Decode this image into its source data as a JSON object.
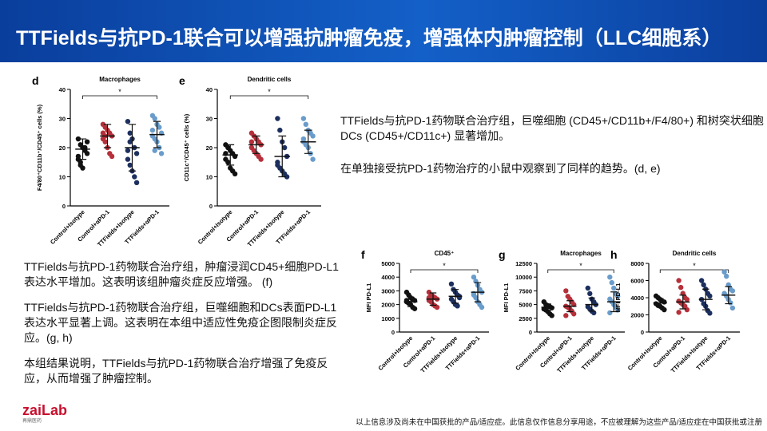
{
  "header": {
    "title": "TTFields与抗PD-1联合可以增强抗肿瘤免疫，增强体内肿瘤控制（LLC细胞系）"
  },
  "right_text": [
    "TTFields与抗PD-1药物联合治疗组，巨噬细胞 (CD45+/CD11b+/F4/80+) 和树突状细胞DCs (CD45+/CD11c+) 显著增加。",
    "在单独接受抗PD-1药物治疗的小鼠中观察到了同样的趋势。(d, e)"
  ],
  "left_text": [
    "TTFields与抗PD-1药物联合治疗组，肿瘤浸润CD45+细胞PD-L1表达水平增加。这表明该组肿瘤炎症反应增强。 (f)",
    "TTFields与抗PD-1药物联合治疗组，巨噬细胞和DCs表面PD-L1表达水平显著上调。这表明在本组中适应性免疫企图限制炎症反应。(g, h)",
    "本组结果说明，TTFields与抗PD-1药物联合治疗增强了免疫反应，从而增强了肿瘤控制。"
  ],
  "logo": {
    "name": "zaiLab",
    "sub": "再鼎医药"
  },
  "footer": "以上信息涉及尚未在中国获批的产品/适应症。此信息仅作信息分享用途，不应被理解为这些产品/适应症在中国获批或注册",
  "chart_data": [
    {
      "type": "strip",
      "label": "d",
      "title": "Macrophages",
      "y_label": "F4/80⁺CD11b⁺/CD45⁺ cells (%)",
      "annotation": "*",
      "categories": [
        "Control+Isotype",
        "Control+αPD-1",
        "TTFields+Isotype",
        "TTFields+αPD-1"
      ],
      "ylim": [
        0,
        40
      ],
      "yticks": [
        0,
        10,
        20,
        30,
        40
      ],
      "groups": [
        {
          "color": "#111111",
          "points": [
            23,
            21,
            20,
            19,
            18,
            16,
            15,
            13,
            20,
            22,
            17,
            14
          ],
          "mean": 19.5,
          "sd": 3.5
        },
        {
          "color": "#b5303a",
          "points": [
            28,
            27,
            26,
            25,
            24,
            23,
            22,
            20,
            18,
            17,
            25,
            24
          ],
          "mean": 24,
          "sd": 4
        },
        {
          "color": "#1c2f5e",
          "points": [
            29,
            25,
            23,
            20,
            18,
            16,
            14,
            12,
            10,
            8,
            19,
            22
          ],
          "mean": 20,
          "sd": 8
        },
        {
          "color": "#6a9ccb",
          "points": [
            31,
            30,
            28,
            27,
            25,
            24,
            23,
            22,
            20,
            18,
            26,
            19
          ],
          "mean": 24.5,
          "sd": 4.5
        }
      ]
    },
    {
      "type": "strip",
      "label": "e",
      "title": "Dendritic cells",
      "y_label": "CD11c⁺/CD45⁺ cells (%)",
      "annotation": "*",
      "categories": [
        "Control+Isotype",
        "Control+αPD-1",
        "TTFields+Isotype",
        "TTFields+αPD-1"
      ],
      "ylim": [
        0,
        40
      ],
      "yticks": [
        0,
        10,
        20,
        30,
        40
      ],
      "groups": [
        {
          "color": "#111111",
          "points": [
            21,
            20,
            19,
            18,
            17,
            16,
            15,
            13,
            12,
            11,
            18
          ],
          "mean": 17.5,
          "sd": 3.5
        },
        {
          "color": "#b5303a",
          "points": [
            25,
            24,
            23,
            22,
            21,
            20,
            19,
            18,
            17,
            16,
            22
          ],
          "mean": 21,
          "sd": 3
        },
        {
          "color": "#1c2f5e",
          "points": [
            30,
            26,
            22,
            20,
            17,
            15,
            13,
            12,
            11,
            10,
            14
          ],
          "mean": 17,
          "sd": 7
        },
        {
          "color": "#6a9ccb",
          "points": [
            30,
            28,
            26,
            25,
            24,
            22,
            21,
            20,
            18,
            16,
            23
          ],
          "mean": 22,
          "sd": 4
        }
      ]
    },
    {
      "type": "strip",
      "label": "f",
      "title": "CD45⁺",
      "y_label": "MFI PD-L1",
      "annotation": "*",
      "categories": [
        "Control+Isotype",
        "Control+αPD-1",
        "TTFields+Isotype",
        "TTFields+αPD-1"
      ],
      "ylim": [
        0,
        5000
      ],
      "yticks": [
        0,
        1000,
        2000,
        3000,
        4000,
        5000
      ],
      "groups": [
        {
          "color": "#111111",
          "points": [
            2900,
            2700,
            2500,
            2400,
            2300,
            2200,
            2100,
            2000,
            1800,
            1700,
            2300
          ],
          "mean": 2200,
          "sd": 350
        },
        {
          "color": "#b5303a",
          "points": [
            2900,
            2700,
            2600,
            2500,
            2400,
            2300,
            2200,
            2000,
            1900,
            1800,
            2500
          ],
          "mean": 2400,
          "sd": 450
        },
        {
          "color": "#1c2f5e",
          "points": [
            3500,
            3100,
            2900,
            2700,
            2500,
            2400,
            2200,
            2000,
            1900,
            2600
          ],
          "mean": 2600,
          "sd": 500
        },
        {
          "color": "#6a9ccb",
          "points": [
            4000,
            3700,
            3400,
            3100,
            2900,
            2700,
            2500,
            2200,
            2000,
            1800,
            2800
          ],
          "mean": 2900,
          "sd": 700
        }
      ]
    },
    {
      "type": "strip",
      "label": "g",
      "title": "Macrophages",
      "y_label": "MFI PD-L1",
      "annotation": "*",
      "categories": [
        "Control+Isotype",
        "Control+αPD-1",
        "TTFields+Isotype",
        "TTFields+αPD-1"
      ],
      "ylim": [
        0,
        12500
      ],
      "yticks": [
        0,
        2500,
        5000,
        7500,
        10000,
        12500
      ],
      "groups": [
        {
          "color": "#111111",
          "points": [
            5500,
            5000,
            4800,
            4600,
            4400,
            4200,
            4000,
            3700,
            3300,
            3000
          ],
          "mean": 4500,
          "sd": 600
        },
        {
          "color": "#b5303a",
          "points": [
            7500,
            6500,
            6000,
            5500,
            5000,
            4700,
            4500,
            4200,
            3800,
            3300,
            3000
          ],
          "mean": 4700,
          "sd": 1000
        },
        {
          "color": "#1c2f5e",
          "points": [
            8000,
            7000,
            6000,
            5500,
            5000,
            4600,
            4200,
            3800,
            3500
          ],
          "mean": 5000,
          "sd": 1200
        },
        {
          "color": "#6a9ccb",
          "points": [
            10000,
            9000,
            8000,
            7000,
            6500,
            6000,
            5500,
            5000,
            4500,
            4000,
            3500
          ],
          "mean": 5500,
          "sd": 1800
        }
      ]
    },
    {
      "type": "strip",
      "label": "h",
      "title": "Dendritic cells",
      "y_label": "MFI PD-L1",
      "annotation": "*",
      "categories": [
        "Control+Isotype",
        "Control+αPD-1",
        "TTFields+Isotype",
        "TTFields+αPD-1"
      ],
      "ylim": [
        0,
        8000
      ],
      "yticks": [
        0,
        2000,
        4000,
        6000,
        8000
      ],
      "groups": [
        {
          "color": "#111111",
          "points": [
            4200,
            4000,
            3800,
            3600,
            3500,
            3300,
            3100,
            3000,
            2800,
            2600
          ],
          "mean": 3400,
          "sd": 500
        },
        {
          "color": "#b5303a",
          "points": [
            6000,
            5200,
            4500,
            4000,
            3800,
            3600,
            3400,
            3200,
            3000,
            2600,
            2300
          ],
          "mean": 3500,
          "sd": 800
        },
        {
          "color": "#1c2f5e",
          "points": [
            6000,
            5500,
            5000,
            4500,
            4200,
            3800,
            3300,
            3000,
            2500,
            2200
          ],
          "mean": 3800,
          "sd": 1200
        },
        {
          "color": "#6a9ccb",
          "points": [
            7000,
            6500,
            5500,
            5000,
            4800,
            4500,
            4200,
            3800,
            3400,
            2800
          ],
          "mean": 4300,
          "sd": 1000
        }
      ]
    }
  ]
}
